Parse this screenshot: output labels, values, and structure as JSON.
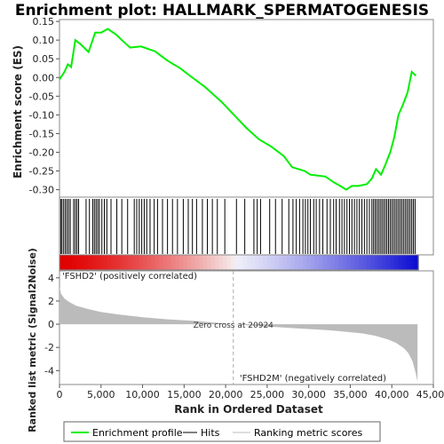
{
  "chart_data": {
    "type": "line",
    "title": "Enrichment plot: HALLMARK_SPERMATOGENESIS",
    "es_panel": {
      "ylabel": "Enrichment score (ES)",
      "ylim": [
        -0.32,
        0.155
      ],
      "yticks": [
        "0.15",
        "0.10",
        "0.05",
        "0.00",
        "-0.05",
        "-0.10",
        "-0.15",
        "-0.20",
        "-0.25",
        "-0.30"
      ],
      "ytick_values": [
        0.15,
        0.1,
        0.05,
        0.0,
        -0.05,
        -0.1,
        -0.15,
        -0.2,
        -0.25,
        -0.3
      ],
      "series": [
        {
          "name": "Enrichment profile",
          "color": "#00ee00",
          "x": [
            0,
            600,
            1000,
            1400,
            1900,
            2500,
            3500,
            4300,
            5000,
            5800,
            6800,
            7500,
            8500,
            9800,
            11500,
            13000,
            14500,
            15800,
            17500,
            19500,
            21000,
            22500,
            24000,
            25500,
            27000,
            28000,
            29500,
            30200,
            31000,
            32000,
            33000,
            33800,
            34500,
            35200,
            36000,
            37000,
            37600,
            38100,
            38700,
            39200,
            39800,
            40300,
            40800,
            41300,
            41900,
            42400,
            42900
          ],
          "y": [
            -0.005,
            0.015,
            0.035,
            0.028,
            0.1,
            0.09,
            0.068,
            0.12,
            0.12,
            0.13,
            0.115,
            0.1,
            0.08,
            0.083,
            0.07,
            0.045,
            0.025,
            0.003,
            -0.025,
            -0.065,
            -0.1,
            -0.135,
            -0.165,
            -0.185,
            -0.21,
            -0.24,
            -0.25,
            -0.26,
            -0.262,
            -0.265,
            -0.28,
            -0.29,
            -0.3,
            -0.29,
            -0.29,
            -0.285,
            -0.27,
            -0.245,
            -0.26,
            -0.235,
            -0.2,
            -0.16,
            -0.1,
            -0.075,
            -0.04,
            0.015,
            0.005
          ]
        }
      ]
    },
    "hits": {
      "positions": [
        150,
        300,
        500,
        700,
        900,
        1100,
        1300,
        1700,
        1900,
        2100,
        2300,
        3200,
        3600,
        4000,
        4200,
        4400,
        4600,
        4800,
        5100,
        5400,
        5700,
        6200,
        6900,
        7500,
        8200,
        9000,
        9300,
        9600,
        9900,
        10200,
        10500,
        10900,
        11400,
        11800,
        12400,
        13000,
        13600,
        14200,
        14900,
        15500,
        16000,
        16500,
        17200,
        17800,
        18400,
        19000,
        19900,
        21300,
        22300,
        23400,
        23800,
        24200,
        25300,
        26000,
        26800,
        27600,
        28100,
        28500,
        28900,
        29300,
        29600,
        29900,
        30200,
        30600,
        30900,
        31300,
        31700,
        32200,
        32600,
        33000,
        33300,
        33700,
        34000,
        34300,
        34600,
        34900,
        35200,
        35500,
        35800,
        36100,
        36400,
        36700,
        37000,
        37300,
        37600,
        37800,
        38000,
        38200,
        38400,
        38600,
        38800,
        39000,
        39200,
        39400,
        39600,
        39800,
        40000,
        40200,
        40400,
        40600,
        40800,
        41000,
        41200,
        41400,
        41600,
        41800,
        42000,
        42200,
        42400,
        42600,
        42800
      ]
    },
    "rank_panel": {
      "ylabel": "Ranked list metric (Signal2Noise)",
      "xlabel": "Rank in Ordered Dataset",
      "ylim": [
        -5.2,
        4.6
      ],
      "yticks": [
        "4",
        "2",
        "0",
        "-2",
        "-4"
      ],
      "ytick_values": [
        4,
        2,
        0,
        -2,
        -4
      ],
      "xticks": [
        "0",
        "5,000",
        "10,000",
        "15,000",
        "20,000",
        "25,000",
        "30,000",
        "35,000",
        "40,000",
        "45,000"
      ],
      "xtick_values": [
        0,
        5000,
        10000,
        15000,
        20000,
        25000,
        30000,
        35000,
        40000,
        45000
      ],
      "xlim": [
        0,
        45000
      ],
      "zero_cross": 20924,
      "zero_cross_label": "Zero cross at 20924",
      "n_genes": 43200,
      "metric_x": [
        0,
        200,
        600,
        1200,
        2000,
        3500,
        5000,
        7000,
        10000,
        13000,
        16000,
        18500,
        20924,
        23000,
        26000,
        29000,
        32000,
        34500,
        36500,
        38000,
        39500,
        40500,
        41500,
        42000,
        42500,
        42900,
        43100
      ],
      "metric_y": [
        3.2,
        2.6,
        2.2,
        1.9,
        1.6,
        1.3,
        1.05,
        0.85,
        0.6,
        0.42,
        0.3,
        0.15,
        0.0,
        -0.12,
        -0.25,
        -0.38,
        -0.5,
        -0.65,
        -0.8,
        -1.0,
        -1.3,
        -1.6,
        -2.1,
        -2.5,
        -3.2,
        -4.3,
        -4.95
      ],
      "pos_label": "'FSHD2' (positively correlated)",
      "neg_label": "'FSHD2M' (negatively correlated)",
      "pos_color": "#dd0000",
      "neg_color": "#0000dd"
    },
    "legend": {
      "items": [
        {
          "label": "Enrichment profile",
          "color": "#00ee00"
        },
        {
          "label": "Hits",
          "color": "#000000"
        },
        {
          "label": "Ranking metric scores",
          "color": "#bbbbbb"
        }
      ]
    }
  }
}
